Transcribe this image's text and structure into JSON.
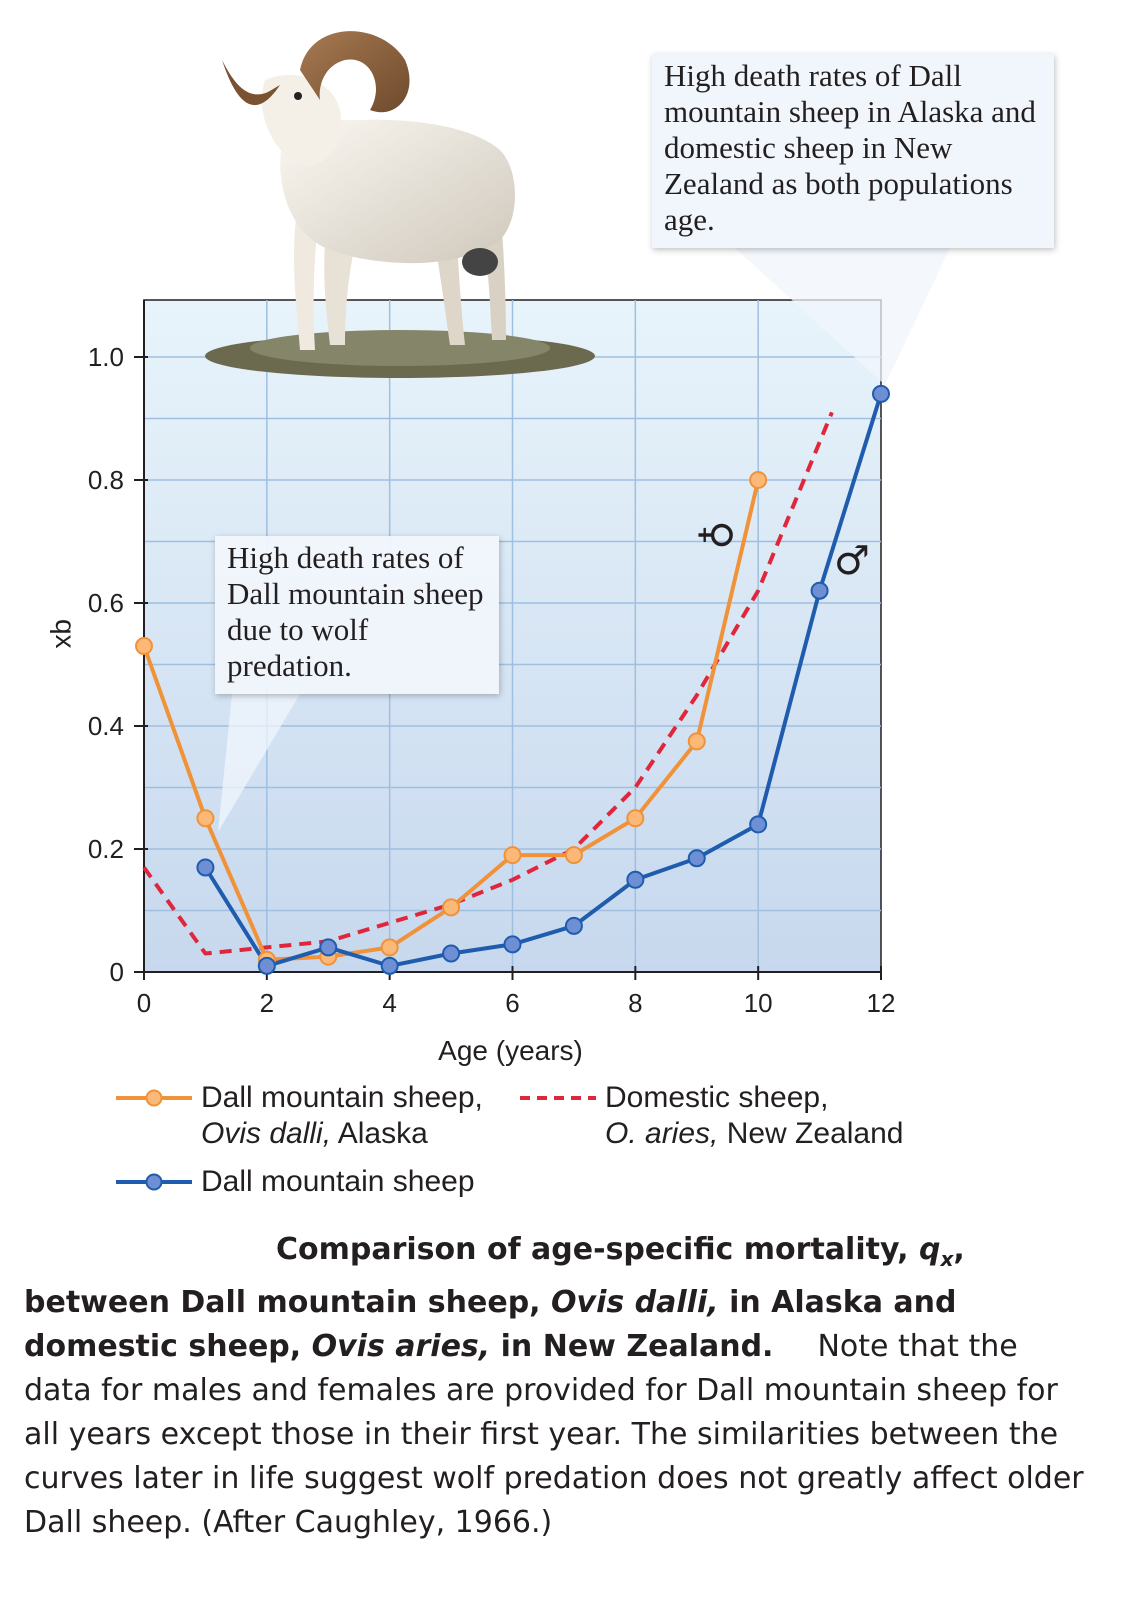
{
  "chart_data": {
    "type": "line",
    "xlabel": "Age (years)",
    "ylabel": "qx",
    "xlim": [
      0,
      12
    ],
    "ylim": [
      0,
      1.0
    ],
    "x_ticks": [
      "0",
      "2",
      "4",
      "6",
      "8",
      "10",
      "12"
    ],
    "y_ticks": [
      "0",
      "0.2",
      "0.4",
      "0.6",
      "0.8",
      "1.0"
    ],
    "grid": true,
    "series": [
      {
        "name": "Dall mountain sheep, Ovis dalli, Alaska",
        "color": "#f0923a",
        "marker": "circle",
        "dashed": false,
        "points": [
          [
            0,
            0.53
          ],
          [
            1,
            0.25
          ],
          [
            2,
            0.02
          ],
          [
            3,
            0.025
          ],
          [
            4,
            0.04
          ],
          [
            5,
            0.105
          ],
          [
            6,
            0.19
          ],
          [
            7,
            0.19
          ],
          [
            8,
            0.25
          ],
          [
            9,
            0.375
          ],
          [
            10,
            0.8
          ]
        ]
      },
      {
        "name": "Dall mountain sheep",
        "color": "#1f5cad",
        "marker": "circle",
        "dashed": false,
        "points": [
          [
            1,
            0.17
          ],
          [
            2,
            0.01
          ],
          [
            3,
            0.04
          ],
          [
            4,
            0.01
          ],
          [
            5,
            0.03
          ],
          [
            6,
            0.045
          ],
          [
            7,
            0.075
          ],
          [
            8,
            0.15
          ],
          [
            9,
            0.185
          ],
          [
            10,
            0.24
          ],
          [
            11,
            0.62
          ],
          [
            12,
            0.94
          ]
        ]
      },
      {
        "name": "Domestic sheep, O. aries, New Zealand",
        "color": "#e0263a",
        "marker": "none",
        "dashed": true,
        "points": [
          [
            0,
            0.17
          ],
          [
            1,
            0.03
          ],
          [
            2,
            0.04
          ],
          [
            3,
            0.05
          ],
          [
            4,
            0.08
          ],
          [
            5,
            0.11
          ],
          [
            6,
            0.15
          ],
          [
            7,
            0.2
          ],
          [
            8,
            0.3
          ],
          [
            9,
            0.45
          ],
          [
            10,
            0.62
          ],
          [
            11.2,
            0.91
          ]
        ]
      }
    ],
    "annotations": {
      "female_symbol": "♀",
      "male_symbol": "♂"
    }
  },
  "callouts": {
    "top": "High death rates of Dall mountain sheep in Alaska and domestic sheep in New Zealand as both populations age.",
    "middle": "High death rates of Dall mountain sheep due to wolf predation."
  },
  "legend": {
    "orange_line1": "Dall mountain sheep,",
    "orange_line2_italic": "Ovis dalli,",
    "orange_line2_rest": " Alaska",
    "red_line1": "Domestic sheep,",
    "red_line2_italic": "O. aries,",
    "red_line2_rest": " New Zealand",
    "blue": "Dall mountain sheep"
  },
  "caption": {
    "bold1": "Comparison of age-specific mortality, ",
    "bold_var": "q",
    "bold_sub": "x",
    "bold2": ", between Dall mountain sheep, ",
    "bold_it1": "Ovis dalli,",
    "bold3": " in Alaska and domestic sheep, ",
    "bold_it2": "Ovis aries,",
    "bold4": " in New Zealand.",
    "normal": "Note that the data for males and females are provided for Dall mountain sheep for all years except those in their first year. The similarities between the curves later in life suggest wolf predation does not greatly affect older Dall sheep. (After Caughley, 1966.)"
  },
  "colors": {
    "orange": "#f0923a",
    "blue": "#1f5cad",
    "red": "#e0263a",
    "plot_top": "#e6f3fb",
    "plot_bottom": "#c9dbef",
    "grid": "#9fbfe0"
  },
  "illustration": "dall-ram-illustration"
}
